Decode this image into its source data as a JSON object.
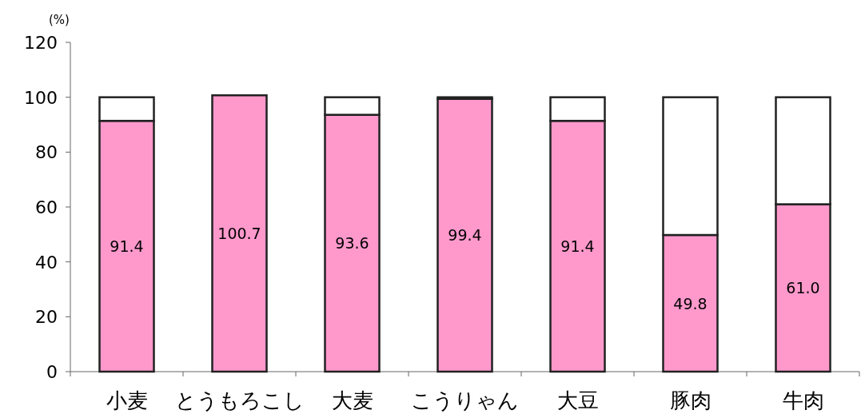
{
  "chart_data": {
    "type": "bar",
    "ylabel": "(%)",
    "categories": [
      "小麦",
      "とうもろこし",
      "大麦",
      "こうりゃん",
      "大豆",
      "豚肉",
      "牛肉"
    ],
    "stacked": true,
    "ylim": [
      0,
      120
    ],
    "yticks": [
      0,
      20,
      40,
      60,
      80,
      100,
      120
    ],
    "grid": false,
    "series": [
      {
        "color": "#ff99cc",
        "values": [
          91.4,
          100.7,
          93.6,
          99.4,
          91.4,
          49.8,
          61.0
        ],
        "value_labels": [
          "91.4",
          "100.7",
          "93.6",
          "99.4",
          "91.4",
          "49.8",
          "61.0"
        ]
      },
      {
        "color": "#ffffff",
        "values": [
          8.6,
          null,
          6.4,
          0.6,
          8.6,
          50.2,
          39.0
        ]
      }
    ]
  }
}
